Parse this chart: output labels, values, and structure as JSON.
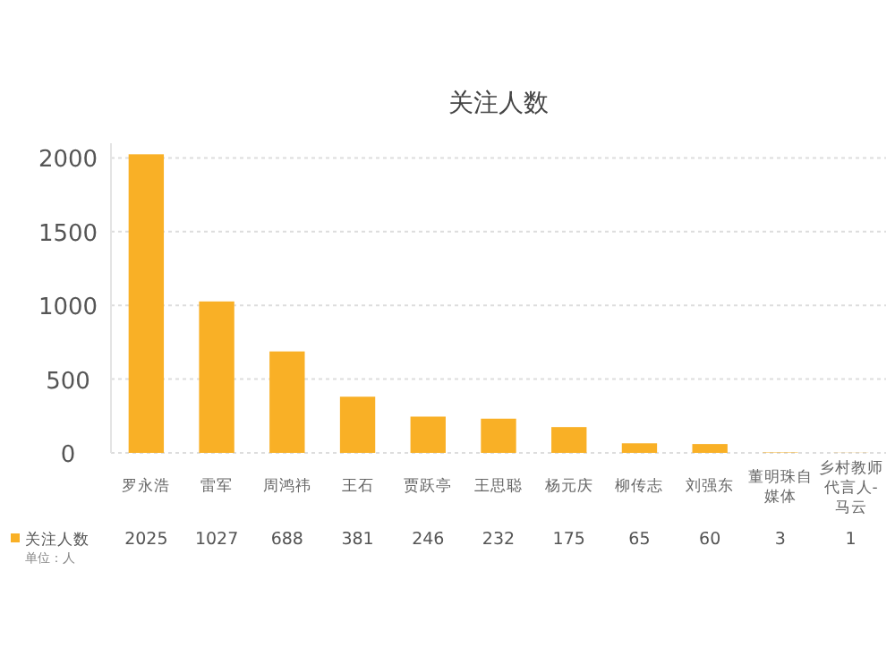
{
  "chart_data": {
    "type": "bar",
    "title": "关注人数",
    "categories": [
      "罗永浩",
      "雷军",
      "周鸿祎",
      "王石",
      "贾跃亭",
      "王思聪",
      "杨元庆",
      "柳传志",
      "刘强东",
      "董明珠自媒体",
      "乡村教师代言人-马云"
    ],
    "series": [
      {
        "name": "关注人数",
        "color": "#f9b026",
        "values": [
          2025,
          1027,
          688,
          381,
          246,
          232,
          175,
          65,
          60,
          3,
          1
        ]
      }
    ],
    "ylim": [
      0,
      2100
    ],
    "yticks": [
      0,
      500,
      1000,
      1500,
      2000
    ],
    "grid": "y",
    "legend": "bottom left",
    "data_labels": true,
    "annotations": [
      "单位：人"
    ]
  }
}
